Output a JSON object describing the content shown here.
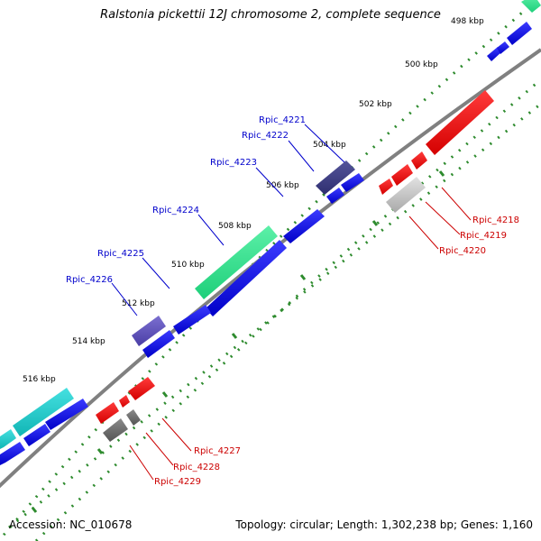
{
  "title": "Ralstonia pickettii 12J chromosome 2, complete sequence",
  "footer": {
    "accession": "Accession: NC_010678",
    "summary": "Topology: circular; Length: 1,302,238 bp; Genes: 1,160"
  },
  "ticks": [
    "498 kbp",
    "500 kbp",
    "502 kbp",
    "504 kbp",
    "506 kbp",
    "508 kbp",
    "510 kbp",
    "512 kbp",
    "514 kbp",
    "516 kbp"
  ],
  "genes_forward": [
    "Rpic_4221",
    "Rpic_4222",
    "Rpic_4223",
    "Rpic_4224",
    "Rpic_4225",
    "Rpic_4226"
  ],
  "genes_reverse": [
    "Rpic_4218",
    "Rpic_4219",
    "Rpic_4220",
    "Rpic_4227",
    "Rpic_4228",
    "Rpic_4229"
  ],
  "colors": {
    "forward_label": "#0000cc",
    "reverse_label": "#cc0000",
    "cds_forward": "#0000e6",
    "cds_reverse": "#ee0000",
    "backbone": "#808080",
    "tick_dots": "#2e8b2e"
  }
}
